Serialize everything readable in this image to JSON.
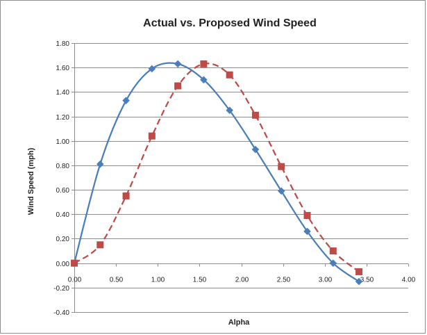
{
  "colors": {
    "series_actual": "#4a7ebb",
    "series_proposed": "#be4b48"
  },
  "chart_data": {
    "type": "scatter",
    "title": "Actual vs. Proposed Wind Speed",
    "xlabel": "Alpha",
    "ylabel": "Wind Speed (mph)",
    "xlim": [
      0,
      4
    ],
    "ylim": [
      -0.4,
      1.8
    ],
    "x_ticks": [
      "0.00",
      "0.50",
      "1.00",
      "1.50",
      "2.00",
      "2.50",
      "3.00",
      "3.50",
      "4.00"
    ],
    "y_ticks": [
      "1.80",
      "1.60",
      "1.40",
      "1.20",
      "1.00",
      "0.80",
      "0.60",
      "0.40",
      "0.20",
      "0.00",
      "-0.20",
      "-0.40"
    ],
    "grid": "horizontal",
    "legend": "none",
    "series": [
      {
        "marker": "diamond",
        "line": "solid smoothed",
        "x": [
          0.0,
          0.31,
          0.62,
          0.93,
          1.24,
          1.55,
          1.86,
          2.17,
          2.48,
          2.79,
          3.1,
          3.41
        ],
        "y": [
          0.0,
          0.81,
          1.33,
          1.59,
          1.63,
          1.5,
          1.25,
          0.93,
          0.59,
          0.26,
          0.0,
          -0.15
        ]
      },
      {
        "marker": "square",
        "line": "dashed smoothed",
        "x": [
          0.0,
          0.31,
          0.62,
          0.93,
          1.24,
          1.55,
          1.86,
          2.17,
          2.48,
          2.79,
          3.1,
          3.41
        ],
        "y": [
          0.0,
          0.15,
          0.55,
          1.04,
          1.45,
          1.63,
          1.54,
          1.21,
          0.79,
          0.39,
          0.1,
          -0.07
        ]
      }
    ]
  }
}
